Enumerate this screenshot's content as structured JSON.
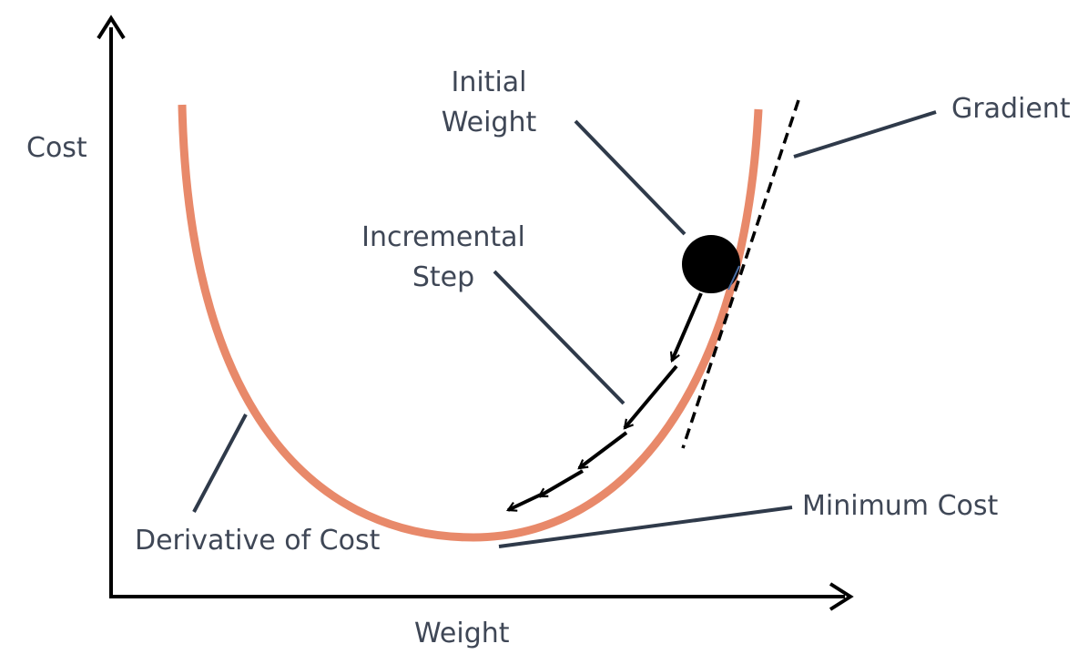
{
  "axes": {
    "y_label": "Cost",
    "x_label": "Weight"
  },
  "labels": {
    "initial_weight_line1": "Initial",
    "initial_weight_line2": "Weight",
    "gradient": "Gradient",
    "incremental_step_line1": "Incremental",
    "incremental_step_line2": "Step",
    "derivative_of_cost": "Derivative of Cost",
    "minimum_cost": "Minimum Cost"
  },
  "colors": {
    "curve": "#e8896a",
    "ink": "#000000",
    "leader_line": "#2f3a4a",
    "text": "#3f4756"
  }
}
